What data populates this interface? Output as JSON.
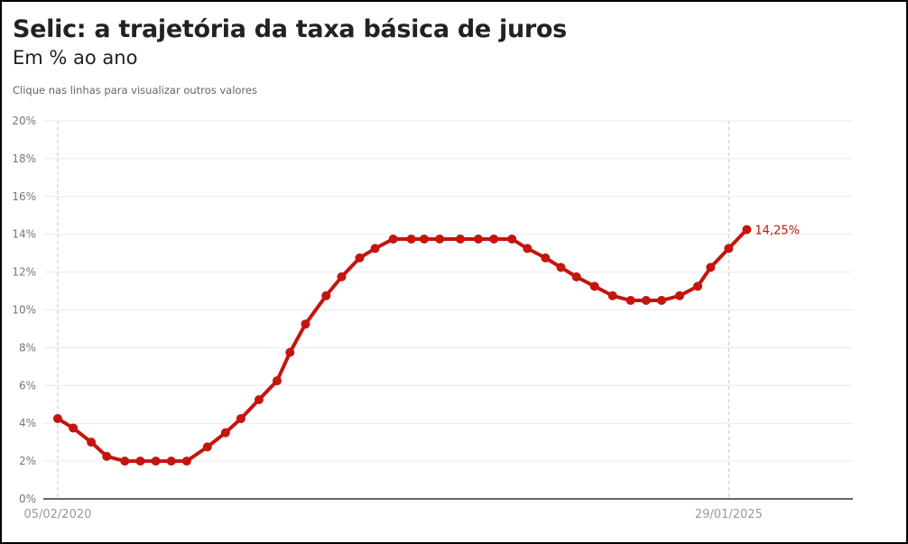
{
  "header": {
    "title": "Selic: a trajetória da taxa básica de juros",
    "subtitle": "Em % ao ano",
    "note": "Clique nas linhas para visualizar outros valores"
  },
  "chart_data": {
    "type": "line",
    "title": "Selic: a trajetória da taxa básica de juros",
    "ylabel": "Em % ao ano",
    "ylim": [
      0,
      20
    ],
    "yticks": [
      0,
      2,
      4,
      6,
      8,
      10,
      12,
      14,
      16,
      18,
      20
    ],
    "ytick_labels": [
      "0%",
      "2%",
      "4%",
      "6%",
      "8%",
      "10%",
      "12%",
      "14%",
      "16%",
      "18%",
      "20%"
    ],
    "xlim": [
      "2019-12-28",
      "2026-01-01"
    ],
    "xticks": [
      "2020-02-05",
      "2025-01-29"
    ],
    "xtick_labels": [
      "05/02/2020",
      "29/01/2025"
    ],
    "grid": true,
    "color": "#c4150f",
    "last_label": "14,25%",
    "x": [
      "2020-02-05",
      "2020-03-18",
      "2020-05-06",
      "2020-06-17",
      "2020-08-05",
      "2020-09-16",
      "2020-10-28",
      "2020-12-09",
      "2021-01-20",
      "2021-03-17",
      "2021-05-05",
      "2021-06-16",
      "2021-08-04",
      "2021-09-22",
      "2021-10-27",
      "2021-12-08",
      "2022-02-02",
      "2022-03-16",
      "2022-05-04",
      "2022-06-15",
      "2022-08-03",
      "2022-09-21",
      "2022-10-26",
      "2022-12-07",
      "2023-02-01",
      "2023-03-22",
      "2023-05-03",
      "2023-06-21",
      "2023-08-02",
      "2023-09-20",
      "2023-11-01",
      "2023-12-13",
      "2024-01-31",
      "2024-03-20",
      "2024-05-08",
      "2024-06-19",
      "2024-07-31",
      "2024-09-18",
      "2024-11-06",
      "2024-12-11",
      "2025-01-29",
      "2025-03-19"
    ],
    "values": [
      4.25,
      3.75,
      3.0,
      2.25,
      2.0,
      2.0,
      2.0,
      2.0,
      2.0,
      2.75,
      3.5,
      4.25,
      5.25,
      6.25,
      7.75,
      9.25,
      10.75,
      11.75,
      12.75,
      13.25,
      13.75,
      13.75,
      13.75,
      13.75,
      13.75,
      13.75,
      13.75,
      13.75,
      13.25,
      12.75,
      12.25,
      11.75,
      11.25,
      10.75,
      10.5,
      10.5,
      10.5,
      10.75,
      11.25,
      12.25,
      13.25,
      14.25
    ]
  }
}
